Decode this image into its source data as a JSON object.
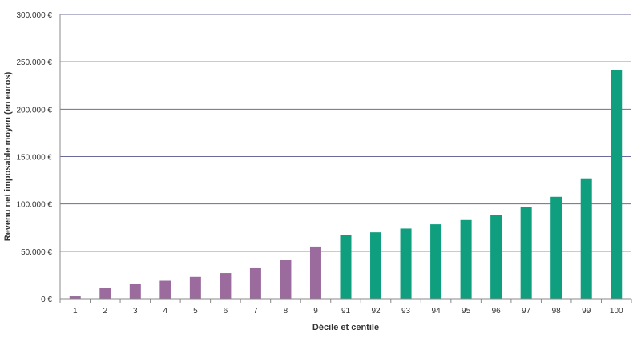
{
  "chart_data": {
    "type": "bar",
    "title": "",
    "xlabel": "Décile et centile",
    "ylabel": "Revenu net imposable moyen (en euros)",
    "ylim": [
      0,
      300000
    ],
    "grid": true,
    "legend": "none",
    "y_ticks": [
      {
        "value": 0,
        "label": "0 €"
      },
      {
        "value": 50000,
        "label": "50.000 €"
      },
      {
        "value": 100000,
        "label": "100.000 €"
      },
      {
        "value": 150000,
        "label": "150.000 €"
      },
      {
        "value": 200000,
        "label": "200.000 €"
      },
      {
        "value": 250000,
        "label": "250.000 €"
      },
      {
        "value": 300000,
        "label": "300.000 €"
      }
    ],
    "categories": [
      "1",
      "2",
      "3",
      "4",
      "5",
      "6",
      "7",
      "8",
      "9",
      "91",
      "92",
      "93",
      "94",
      "95",
      "96",
      "97",
      "98",
      "99",
      "100"
    ],
    "values": [
      2500,
      11500,
      16000,
      19000,
      23000,
      27000,
      33000,
      41000,
      55000,
      67000,
      70000,
      74000,
      78500,
      83000,
      88500,
      96500,
      107500,
      127000,
      241000
    ],
    "bar_colors": {
      "decile": "#9b6b9e",
      "centile": "#0f9e7e"
    },
    "bar_groups": [
      "decile",
      "decile",
      "decile",
      "decile",
      "decile",
      "decile",
      "decile",
      "decile",
      "decile",
      "centile",
      "centile",
      "centile",
      "centile",
      "centile",
      "centile",
      "centile",
      "centile",
      "centile",
      "centile"
    ],
    "grid_color": "#6b6b9e",
    "axis_color": "#888888"
  }
}
